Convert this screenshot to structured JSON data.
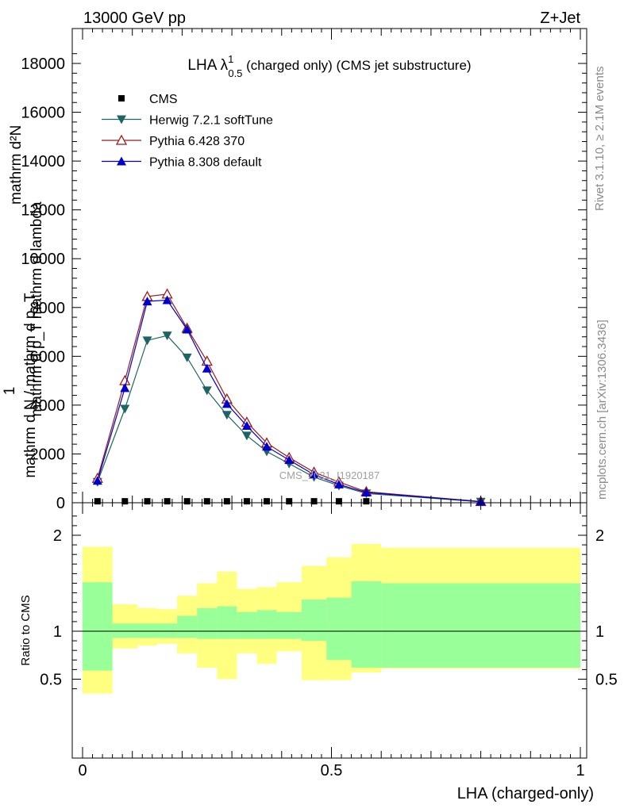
{
  "header": {
    "left": "13000 GeV pp",
    "right": "Z+Jet"
  },
  "side": {
    "rivet": "Rivet 3.1.10, ≥ 2.1M events",
    "mcplots": "mcplots.cern.ch [arXiv:1306.3436]"
  },
  "watermark": "CMS_2021_I1920187",
  "chart_data": [
    {
      "type": "line",
      "panel": "main",
      "title": {
        "main": "LHA λ",
        "sup": "1",
        "sub": "0.5",
        "rest": " (charged only) (CMS jet substructure)"
      },
      "ylabel": {
        "num": "mathrm d²N",
        "num_sub": "",
        "den": "mathrm d p_T mathrm d lambda",
        "pre": "1",
        "lower": "mathrm d N / mathrm d p_T"
      },
      "ylim": [
        0,
        18500
      ],
      "xlim": [
        -0.02,
        1.0
      ],
      "yticks": [
        0,
        2000,
        4000,
        6000,
        8000,
        10000,
        12000,
        14000,
        16000,
        18000
      ],
      "ytick_labels": [
        "0",
        "2000",
        "4000",
        "6000",
        "8000",
        "10000",
        "12000",
        "14000",
        "16000",
        "18000"
      ],
      "legend_position": "top-left",
      "series": [
        {
          "name": "CMS",
          "marker": "square",
          "color": "#000000",
          "x": [
            0.03,
            0.085,
            0.13,
            0.17,
            0.21,
            0.25,
            0.29,
            0.33,
            0.37,
            0.415,
            0.465,
            0.515,
            0.57
          ],
          "y": [
            60,
            60,
            60,
            60,
            60,
            60,
            60,
            60,
            60,
            60,
            60,
            60,
            60
          ]
        },
        {
          "name": "Herwig 7.2.1 softTune",
          "marker": "triangle-down",
          "color": "#1f6464",
          "x": [
            0.03,
            0.085,
            0.13,
            0.17,
            0.21,
            0.25,
            0.29,
            0.33,
            0.37,
            0.415,
            0.465,
            0.515,
            0.57,
            0.8
          ],
          "y": [
            850,
            3850,
            6650,
            6850,
            5950,
            4600,
            3600,
            2750,
            2100,
            1600,
            1050,
            700,
            380,
            40
          ]
        },
        {
          "name": "Pythia 6.428 370",
          "marker": "triangle-up-open",
          "color": "#9b1b1b",
          "x": [
            0.03,
            0.085,
            0.13,
            0.17,
            0.21,
            0.25,
            0.29,
            0.33,
            0.37,
            0.415,
            0.465,
            0.515,
            0.57,
            0.8
          ],
          "y": [
            1000,
            5000,
            8450,
            8550,
            7150,
            5800,
            4250,
            3300,
            2450,
            1850,
            1250,
            850,
            450,
            50
          ]
        },
        {
          "name": "Pythia 8.308 default",
          "marker": "triangle-up",
          "color": "#0000cc",
          "x": [
            0.03,
            0.085,
            0.13,
            0.17,
            0.21,
            0.25,
            0.29,
            0.33,
            0.37,
            0.415,
            0.465,
            0.515,
            0.57,
            0.8
          ],
          "y": [
            900,
            4700,
            8250,
            8300,
            7100,
            5500,
            4050,
            3150,
            2300,
            1750,
            1150,
            750,
            420,
            45
          ]
        }
      ]
    },
    {
      "type": "area",
      "panel": "ratio",
      "ylabel": "Ratio to CMS",
      "xlabel": "LHA (charged-only)",
      "ylim": [
        0.35,
        2.25
      ],
      "xlim": [
        -0.02,
        1.0
      ],
      "yticks": [
        0.5,
        1,
        2
      ],
      "ytick_labels": [
        "0.5",
        "1",
        "2"
      ],
      "xticks": [
        0,
        0.5,
        1
      ],
      "xtick_labels": [
        "0",
        "0.5",
        "1"
      ],
      "reference": 1,
      "bin_edges": [
        0,
        0.06,
        0.11,
        0.15,
        0.19,
        0.23,
        0.27,
        0.31,
        0.35,
        0.39,
        0.44,
        0.49,
        0.54,
        0.6,
        1.0
      ],
      "bands": [
        {
          "name": "stat",
          "color": "#99ff99",
          "low": [
            0.59,
            0.93,
            0.93,
            0.93,
            0.93,
            0.92,
            0.92,
            0.92,
            0.92,
            0.92,
            0.9,
            0.7,
            0.62,
            0.62
          ],
          "high": [
            1.51,
            1.08,
            1.08,
            1.08,
            1.16,
            1.24,
            1.26,
            1.2,
            1.22,
            1.2,
            1.33,
            1.35,
            1.52,
            1.5
          ]
        },
        {
          "name": "syst",
          "color": "#ffff80",
          "low": [
            0.35,
            0.82,
            0.85,
            0.87,
            0.77,
            0.62,
            0.5,
            0.77,
            0.66,
            0.79,
            0.49,
            0.49,
            0.57,
            0.61
          ],
          "high": [
            1.88,
            1.28,
            1.24,
            1.23,
            1.37,
            1.5,
            1.62,
            1.44,
            1.46,
            1.51,
            1.68,
            1.77,
            1.91,
            1.87
          ]
        }
      ]
    }
  ]
}
